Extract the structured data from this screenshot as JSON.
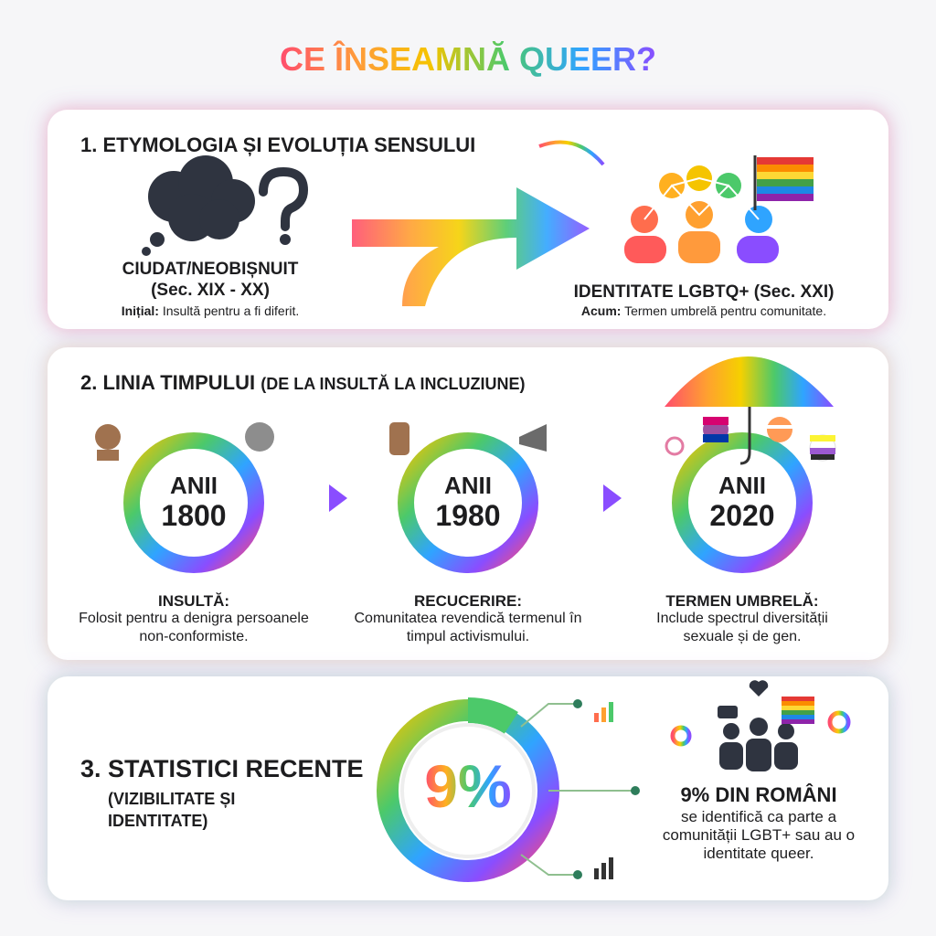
{
  "title": "CE ÎNSEAMNĂ QUEER?",
  "sections": [
    {
      "heading": "1. ETYMOLOGIA ȘI EVOLUȚIA SENSULUI",
      "before": {
        "label": "CIUDAT/NEOBIȘNUIT",
        "period": "(Sec. XIX - XX)",
        "note_lead": "Inițial:",
        "note": "Insultă pentru a fi diferit."
      },
      "after": {
        "label": "IDENTITATE LGBTQ+ (Sec. XXI)",
        "note_lead": "Acum:",
        "note": "Termen umbrelă pentru comunitate."
      }
    },
    {
      "heading": "2. LINIA TIMPULUI",
      "heading_detail": "(DE LA INSULTĂ LA INCLUZIUNE)",
      "eras": [
        {
          "label": "ANII",
          "year": "1800",
          "title": "INSULTĂ:",
          "text": "Folosit pentru a denigra persoanele non-conformiste."
        },
        {
          "label": "ANII",
          "year": "1980",
          "title": "RECUCERIRE:",
          "text": "Comunitatea revendică termenul în timpul activismului."
        },
        {
          "label": "ANII",
          "year": "2020",
          "title": "TERMEN UMBRELĂ:",
          "text": "Include spectrul diversității sexuale și de gen."
        }
      ]
    },
    {
      "heading": "3. STATISTICI RECENTE",
      "subheading": "(VIZIBILITATE ȘI IDENTITATE)",
      "stat": "9%",
      "stat_title": "9% DIN ROMÂNI",
      "stat_text": "se identifică ca parte a comunității LGBT+ sau au o identitate queer."
    }
  ]
}
